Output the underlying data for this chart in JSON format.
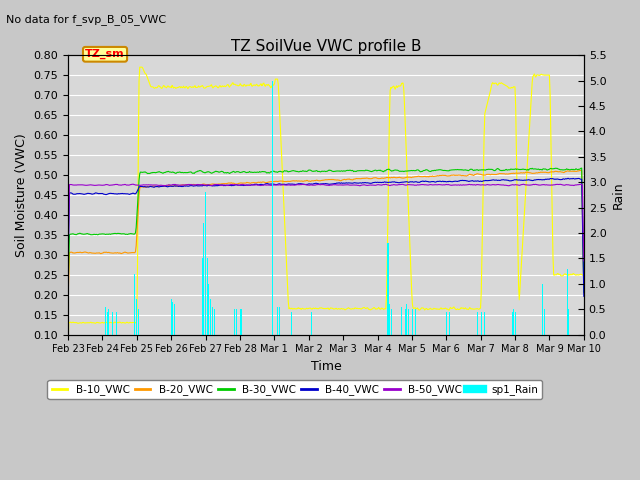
{
  "title": "TZ SoilVue VWC profile B",
  "subtitle": "No data for f_svp_B_05_VWC",
  "xlabel": "Time",
  "ylabel_left": "Soil Moisture (VWC)",
  "ylabel_right": "Rain",
  "ylim_left": [
    0.1,
    0.8
  ],
  "ylim_right": [
    0.0,
    5.5
  ],
  "yticks_left": [
    0.1,
    0.15,
    0.2,
    0.25,
    0.3,
    0.35,
    0.4,
    0.45,
    0.5,
    0.55,
    0.6,
    0.65,
    0.7,
    0.75,
    0.8
  ],
  "yticks_right": [
    0.0,
    0.5,
    1.0,
    1.5,
    2.0,
    2.5,
    3.0,
    3.5,
    4.0,
    4.5,
    5.0,
    5.5
  ],
  "plot_bg_color": "#d8d8d8",
  "annotation_text": "TZ_sm",
  "colors": {
    "B10": "#ffff00",
    "B20": "#ff9900",
    "B30": "#00cc00",
    "B40": "#0000cc",
    "B50": "#9900cc",
    "Rain": "#00ffff"
  },
  "xtick_labels": [
    "Feb 23",
    "Feb 24",
    "Feb 25",
    "Feb 26",
    "Feb 27",
    "Feb 28",
    "Mar 1",
    "Mar 2",
    "Mar 3",
    "Mar 4",
    "Mar 5",
    "Mar 6",
    "Mar 7",
    "Mar 8",
    "Mar 9",
    "Mar 10"
  ],
  "legend_labels": [
    "B-10_VWC",
    "B-20_VWC",
    "B-30_VWC",
    "B-40_VWC",
    "B-50_VWC",
    "sp1_Rain"
  ]
}
